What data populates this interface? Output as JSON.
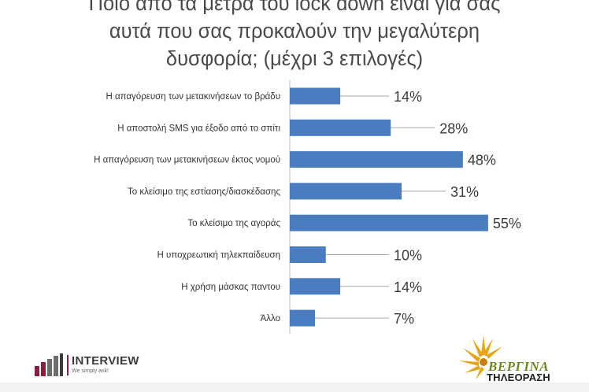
{
  "title_lines": [
    "Ποιο από τα μέτρα του lock down είναι για σας",
    "αυτά που σας προκαλούν την μεγαλύτερη",
    "δυσφορία; (μέχρι 3 επιλογές)"
  ],
  "chart_data": {
    "type": "bar",
    "orientation": "horizontal",
    "title": "Ποιο από τα μέτρα του lock down είναι για σας αυτά που σας προκαλούν την μεγαλύτερη δυσφορία; (μέχρι 3 επιλογές)",
    "categories": [
      "Η απαγόρευση των μετακινήσεων το βράδυ",
      "Η αποστολή SMS για έξοδο από το σπίτι",
      "Η απαγόρευση των μετακινήσεων έκτος νομού",
      "Το κλείσιμο της εστίασης/διασκέδασης",
      "Το κλείσιμο της αγοράς",
      "Η υποχρεωτική τηλεκπαίδευση",
      "Η χρήση μάσκας παντου",
      "Άλλο"
    ],
    "values": [
      14,
      28,
      48,
      31,
      55,
      10,
      14,
      7
    ],
    "value_labels": [
      "14%",
      "28%",
      "48%",
      "31%",
      "55%",
      "10%",
      "14%",
      "7%"
    ],
    "unit": "%",
    "xlim": [
      0,
      55
    ],
    "bar_color": "#4a7cc0",
    "grid": false,
    "legend": "none"
  },
  "logos": {
    "interview": {
      "name": "INTERVIEW",
      "tagline": "We simply ask!",
      "accent_color": "#8a1f3c"
    },
    "vergina": {
      "name": "ΒΕΡΓΙΝΑ",
      "subtitle": "ΤΗΛΕΟΡΑΣΗ",
      "sun_color": "#e8a317",
      "name_color": "#6b8a1e"
    }
  }
}
